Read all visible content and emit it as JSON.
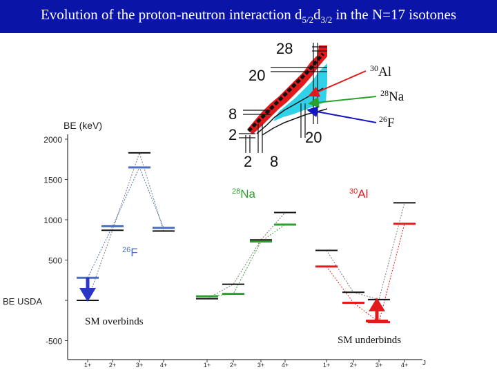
{
  "title": {
    "prefix": "Evolution of the proton-neutron interaction d",
    "sub1": "5/2",
    "mid": "d",
    "sub2": "3/2",
    "suffix": " in the N=17 isotones"
  },
  "chart_data": {
    "type": "level-scheme",
    "ylabel": "BE (keV)",
    "yticks": [
      2000,
      1500,
      1000,
      500,
      0,
      -500
    ],
    "y_zero_label": "BE USDA",
    "ylim": [
      -620,
      2150
    ],
    "x_tick_labels": [
      "1+",
      "2+",
      "3+",
      "4+"
    ],
    "x_axis_end_label": "J",
    "groups": [
      {
        "nucleus": "26F",
        "color": "#4a6fc2",
        "usda": [
          0,
          870,
          1830,
          860
        ],
        "experiment": [
          280,
          920,
          1650,
          900
        ]
      },
      {
        "nucleus": "28Na",
        "color": "#2ca02c",
        "usda": [
          20,
          200,
          750,
          1090
        ],
        "experiment": [
          50,
          80,
          730,
          940
        ]
      },
      {
        "nucleus": "30Al",
        "color": "#e31a1c",
        "usda": [
          620,
          100,
          10,
          1210
        ],
        "experiment": [
          420,
          -30,
          -270,
          950
        ]
      }
    ]
  },
  "inset": {
    "labels_top": [
      "28",
      "20"
    ],
    "labels_left": [
      "8",
      "2"
    ],
    "labels_bottom": [
      "2",
      "8",
      "20"
    ]
  },
  "pointers": {
    "al": {
      "mass": "30",
      "element": "Al"
    },
    "na": {
      "mass": "28",
      "element": "Na"
    },
    "f": {
      "mass": "26",
      "element": "F"
    }
  },
  "nucleus_labels": {
    "f": {
      "mass": "26",
      "element": "F"
    },
    "na": {
      "mass": "28",
      "element": "Na"
    },
    "al": {
      "mass": "30",
      "element": "Al"
    }
  },
  "annotations": {
    "overbinds": "SM overbinds",
    "underbinds": "SM underbinds"
  },
  "colors": {
    "title_bg": "#0a14a6",
    "f_blue": "#4a6fc2",
    "na_green": "#2ca02c",
    "al_red": "#e31a1c"
  }
}
